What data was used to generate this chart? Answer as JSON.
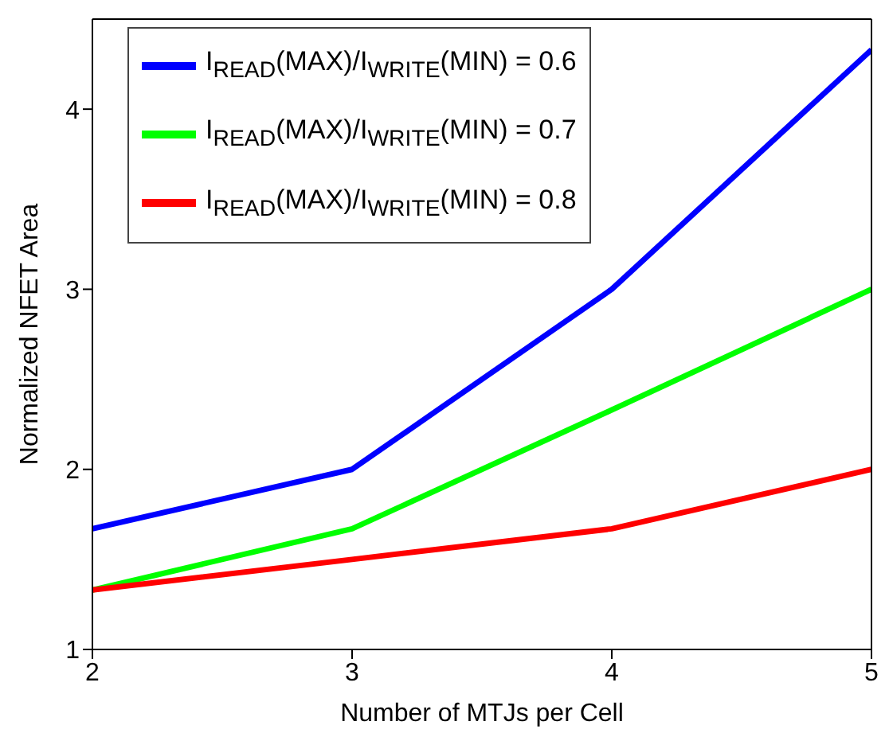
{
  "chart_data": {
    "type": "line",
    "xlabel": "Number of MTJs per Cell",
    "ylabel": "Normalized NFET Area",
    "x": [
      2,
      3,
      4,
      5
    ],
    "xlim": [
      2,
      5
    ],
    "xticks": [
      2,
      3,
      4,
      5
    ],
    "ylim": [
      1,
      4.5
    ],
    "yticks": [
      1,
      2,
      3,
      4
    ],
    "grid": false,
    "legend": "top left",
    "marker": "none",
    "line_style": "solid",
    "series": [
      {
        "name": "I$_{READ}$(MAX)/I$_{WRITE}$(MIN) = 0.6",
        "color": "#0000ff",
        "values": [
          1.67,
          2.0,
          3.0,
          4.33
        ]
      },
      {
        "name": "I$_{READ}$(MAX)/I$_{WRITE}$(MIN) = 0.7",
        "color": "#00ff00",
        "values": [
          1.33,
          1.67,
          2.33,
          3.0
        ]
      },
      {
        "name": "I$_{READ}$(MAX)/I$_{WRITE}$(MIN) = 0.8",
        "color": "#ff0000",
        "values": [
          1.33,
          1.5,
          1.67,
          2.0
        ]
      }
    ]
  }
}
